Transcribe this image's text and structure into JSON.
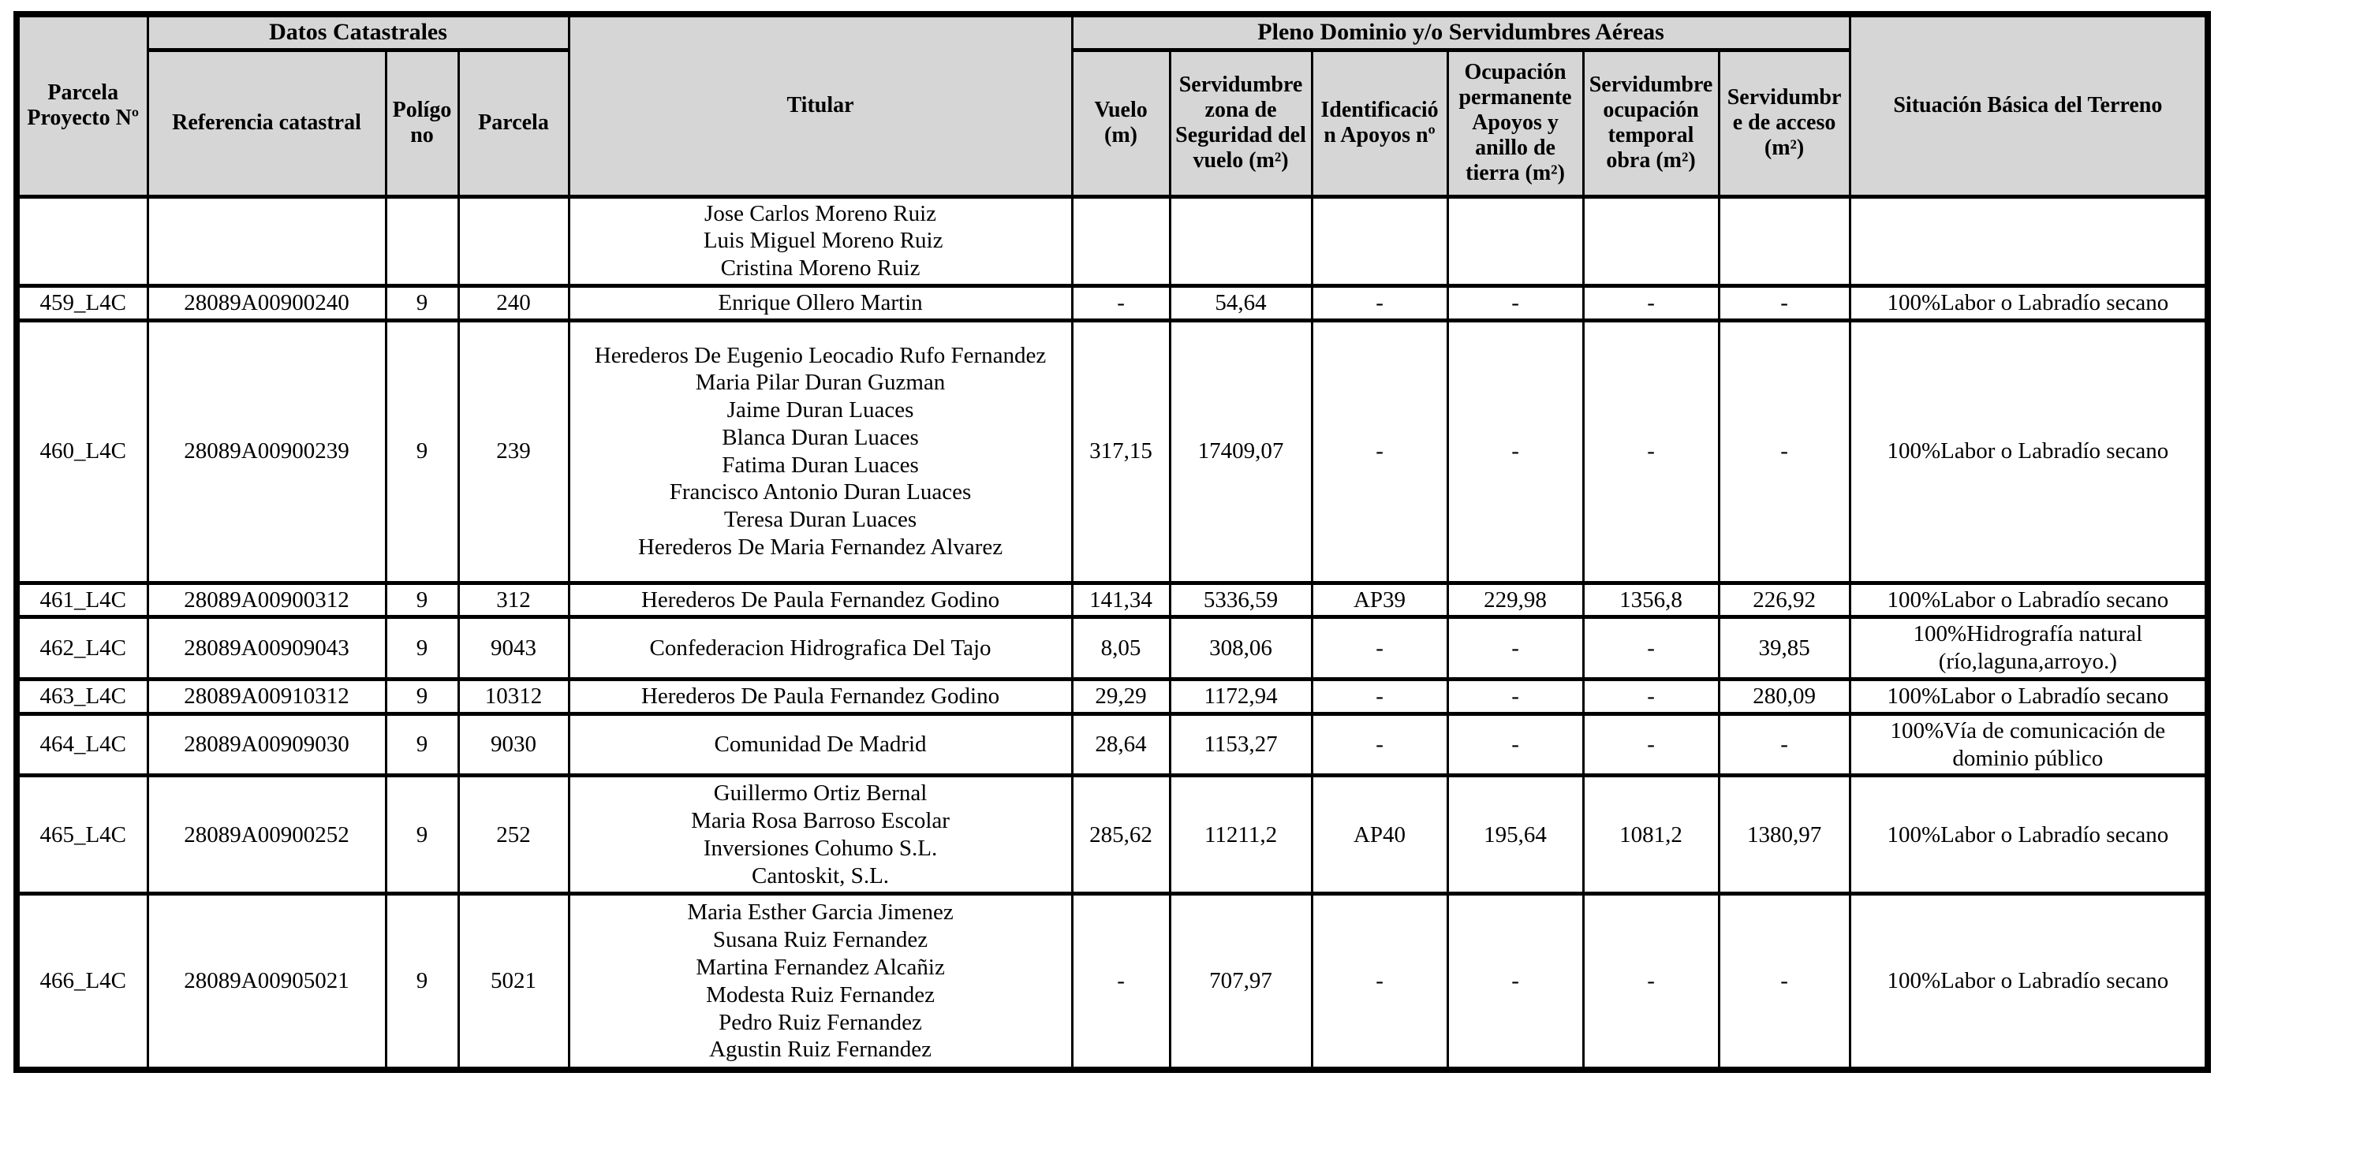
{
  "table": {
    "group_headers": {
      "datos_catastrales": "Datos Catastrales",
      "pleno_dominio": "Pleno Dominio y/o Servidumbres Aéreas"
    },
    "columns": [
      {
        "id": "parcela_proyecto",
        "label": "Parcela Proyecto Nº"
      },
      {
        "id": "referencia_catastral",
        "label": "Referencia catastral"
      },
      {
        "id": "poligono",
        "label": "Polígono"
      },
      {
        "id": "parcela",
        "label": "Parcela"
      },
      {
        "id": "titular",
        "label": "Titular"
      },
      {
        "id": "vuelo",
        "label": "Vuelo (m)"
      },
      {
        "id": "serv_zona_seguridad",
        "label": "Servidumbre zona de Seguridad del vuelo (m²)"
      },
      {
        "id": "identificacion_apoyos",
        "label": "Identificación Apoyos nº"
      },
      {
        "id": "ocupacion_permanente",
        "label": "Ocupación permanente Apoyos y anillo de tierra (m²)"
      },
      {
        "id": "serv_ocupacion_temporal",
        "label": "Servidumbre ocupación temporal obra (m²)"
      },
      {
        "id": "serv_acceso",
        "label": "Servidumbre de acceso (m²)"
      },
      {
        "id": "situacion_basica",
        "label": "Situación Básica del Terreno"
      }
    ],
    "rows": [
      {
        "parcela_proyecto": "",
        "referencia_catastral": "",
        "poligono": "",
        "parcela": "",
        "titular": [
          "Jose Carlos Moreno Ruiz",
          " Luis Miguel Moreno Ruiz",
          "Cristina Moreno Ruiz"
        ],
        "vuelo": "",
        "serv_zona_seguridad": "",
        "identificacion_apoyos": "",
        "ocupacion_permanente": "",
        "serv_ocupacion_temporal": "",
        "serv_acceso": "",
        "situacion_basica": ""
      },
      {
        "parcela_proyecto": "459_L4C",
        "referencia_catastral": "28089A00900240",
        "poligono": "9",
        "parcela": "240",
        "titular": [
          "Enrique Ollero Martin"
        ],
        "vuelo": "-",
        "serv_zona_seguridad": "54,64",
        "identificacion_apoyos": "-",
        "ocupacion_permanente": "-",
        "serv_ocupacion_temporal": "-",
        "serv_acceso": "-",
        "situacion_basica": "100%Labor o Labradío secano"
      },
      {
        "parcela_proyecto": "460_L4C",
        "referencia_catastral": "28089A00900239",
        "poligono": "9",
        "parcela": "239",
        "titular": [
          "Herederos De Eugenio Leocadio Rufo Fernandez",
          "Maria Pilar Duran Guzman",
          "Jaime Duran Luaces",
          "Blanca Duran Luaces",
          "Fatima Duran Luaces",
          "Francisco Antonio Duran Luaces",
          "Teresa Duran Luaces",
          "Herederos De Maria Fernandez Alvarez"
        ],
        "vuelo": "317,15",
        "serv_zona_seguridad": "17409,07",
        "identificacion_apoyos": "-",
        "ocupacion_permanente": "-",
        "serv_ocupacion_temporal": "-",
        "serv_acceso": "-",
        "situacion_basica": "100%Labor o Labradío secano"
      },
      {
        "parcela_proyecto": "461_L4C",
        "referencia_catastral": "28089A00900312",
        "poligono": "9",
        "parcela": "312",
        "titular": [
          "Herederos De Paula Fernandez Godino"
        ],
        "vuelo": "141,34",
        "serv_zona_seguridad": "5336,59",
        "identificacion_apoyos": "AP39",
        "ocupacion_permanente": "229,98",
        "serv_ocupacion_temporal": "1356,8",
        "serv_acceso": "226,92",
        "situacion_basica": "100%Labor o Labradío secano"
      },
      {
        "parcela_proyecto": "462_L4C",
        "referencia_catastral": "28089A00909043",
        "poligono": "9",
        "parcela": "9043",
        "titular": [
          "Confederacion Hidrografica Del Tajo"
        ],
        "vuelo": "8,05",
        "serv_zona_seguridad": "308,06",
        "identificacion_apoyos": "-",
        "ocupacion_permanente": "-",
        "serv_ocupacion_temporal": "-",
        "serv_acceso": "39,85",
        "situacion_basica": "100%Hidrografía natural (río,laguna,arroyo.)"
      },
      {
        "parcela_proyecto": "463_L4C",
        "referencia_catastral": "28089A00910312",
        "poligono": "9",
        "parcela": "10312",
        "titular": [
          "Herederos De Paula Fernandez Godino"
        ],
        "vuelo": "29,29",
        "serv_zona_seguridad": "1172,94",
        "identificacion_apoyos": "-",
        "ocupacion_permanente": "-",
        "serv_ocupacion_temporal": "-",
        "serv_acceso": "280,09",
        "situacion_basica": "100%Labor o Labradío secano"
      },
      {
        "parcela_proyecto": "464_L4C",
        "referencia_catastral": "28089A00909030",
        "poligono": "9",
        "parcela": "9030",
        "titular": [
          "Comunidad De Madrid"
        ],
        "vuelo": "28,64",
        "serv_zona_seguridad": "1153,27",
        "identificacion_apoyos": "-",
        "ocupacion_permanente": "-",
        "serv_ocupacion_temporal": "-",
        "serv_acceso": "-",
        "situacion_basica": "100%Vía de comunicación de dominio público"
      },
      {
        "parcela_proyecto": "465_L4C",
        "referencia_catastral": "28089A00900252",
        "poligono": "9",
        "parcela": "252",
        "titular": [
          "Guillermo Ortiz Bernal",
          "Maria Rosa Barroso Escolar",
          "Inversiones Cohumo S.L.",
          "Cantoskit, S.L."
        ],
        "vuelo": "285,62",
        "serv_zona_seguridad": "11211,2",
        "identificacion_apoyos": "AP40",
        "ocupacion_permanente": "195,64",
        "serv_ocupacion_temporal": "1081,2",
        "serv_acceso": "1380,97",
        "situacion_basica": "100%Labor o Labradío secano"
      },
      {
        "parcela_proyecto": "466_L4C",
        "referencia_catastral": "28089A00905021",
        "poligono": "9",
        "parcela": "5021",
        "titular": [
          "Maria Esther Garcia Jimenez",
          "Susana Ruiz Fernandez",
          "Martina Fernandez Alcañiz",
          "Modesta Ruiz Fernandez",
          "Pedro Ruiz Fernandez",
          "Agustin Ruiz Fernandez"
        ],
        "vuelo": "-",
        "serv_zona_seguridad": "707,97",
        "identificacion_apoyos": "-",
        "ocupacion_permanente": "-",
        "serv_ocupacion_temporal": "-",
        "serv_acceso": "-",
        "situacion_basica": "100%Labor o Labradío secano"
      }
    ],
    "colors": {
      "header_bg": "#d6d6d6",
      "border": "#000000",
      "text": "#000000"
    }
  }
}
